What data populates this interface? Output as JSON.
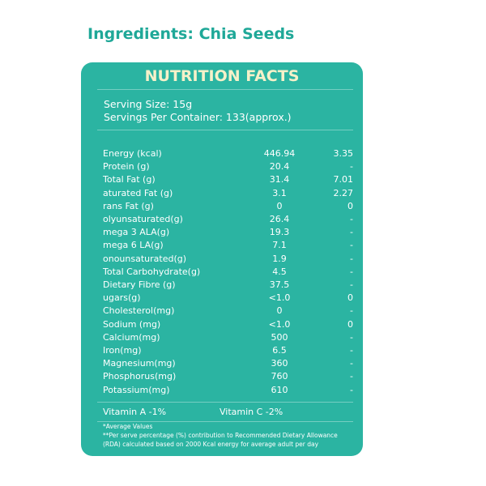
{
  "header": {
    "title": "Ingredients: Chia Seeds"
  },
  "panel": {
    "title": "NUTRITION FACTS",
    "serving": [
      "Serving Size: 15g",
      "Servings Per Container: 133(approx.)"
    ],
    "rows": [
      [
        "Energy (kcal)",
        "446.94",
        "3.35"
      ],
      [
        "Protein (g)",
        "20.4",
        "-"
      ],
      [
        "Total Fat (g)",
        "31.4",
        "7.01"
      ],
      [
        "aturated Fat (g)",
        "3.1",
        "2.27"
      ],
      [
        "rans Fat (g)",
        "0",
        "0"
      ],
      [
        "olyunsaturated(g)",
        "26.4",
        "-"
      ],
      [
        "mega 3 ALA(g)",
        "19.3",
        "-"
      ],
      [
        "mega 6 LA(g)",
        "7.1",
        "-"
      ],
      [
        "onounsaturated(g)",
        "1.9",
        "-"
      ],
      [
        "Total Carbohydrate(g)",
        "4.5",
        "-"
      ],
      [
        "Dietary Fibre (g)",
        "37.5",
        "-"
      ],
      [
        "ugars(g)",
        "<1.0",
        "0"
      ],
      [
        "Cholesterol(mg)",
        "0",
        "-"
      ],
      [
        "Sodium (mg)",
        "<1.0",
        "0"
      ],
      [
        "Calcium(mg)",
        "500",
        "-"
      ],
      [
        "Iron(mg)",
        "6.5",
        "-"
      ],
      [
        "Magnesium(mg)",
        "360",
        "-"
      ],
      [
        "Phosphorus(mg)",
        "760",
        "-"
      ],
      [
        "Potassium(mg)",
        "610",
        "-"
      ]
    ],
    "vitamins": [
      "Vitamin A -1%",
      "Vitamin C -2%"
    ],
    "footnotes": [
      "*Average Values",
      "**Per serve percentage (%) contribution to Recommended Dietary Allowance",
      "(RDA) calculated based on 2000 Kcal energy for average adult per day"
    ]
  }
}
